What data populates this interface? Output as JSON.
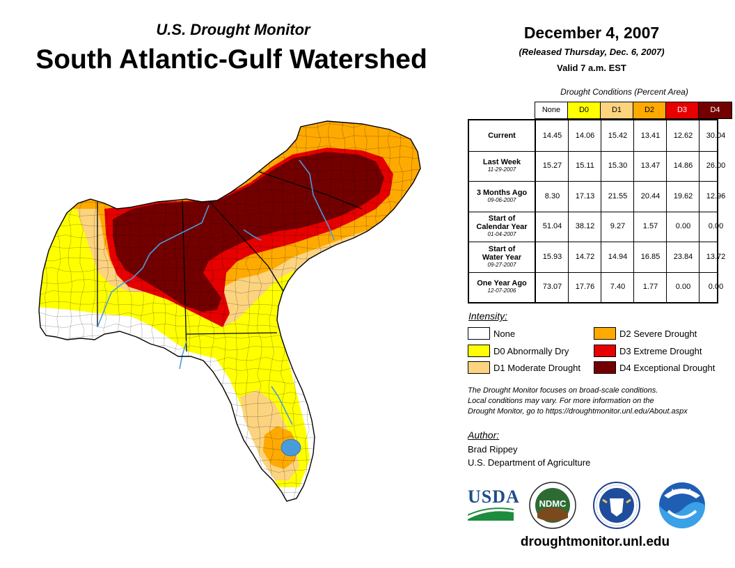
{
  "header": {
    "supertitle": "U.S. Drought Monitor",
    "title": "South Atlantic-Gulf Watershed",
    "date": "December 4, 2007",
    "released": "(Released Thursday, Dec. 6, 2007)",
    "valid": "Valid 7 a.m. EST"
  },
  "table": {
    "title": "Drought Conditions (Percent Area)",
    "columns": [
      {
        "label": "None",
        "color": "#ffffff",
        "text_color": "#000000"
      },
      {
        "label": "D0",
        "color": "#ffff00",
        "text_color": "#000000"
      },
      {
        "label": "D1",
        "color": "#fcd37f",
        "text_color": "#000000"
      },
      {
        "label": "D2",
        "color": "#ffaa00",
        "text_color": "#000000"
      },
      {
        "label": "D3",
        "color": "#e60000",
        "text_color": "#ffffff"
      },
      {
        "label": "D4",
        "color": "#730000",
        "text_color": "#ffffff"
      }
    ],
    "rows": [
      {
        "label": "Current",
        "label2": "",
        "sub": "",
        "values": [
          "14.45",
          "14.06",
          "15.42",
          "13.41",
          "12.62",
          "30.04"
        ]
      },
      {
        "label": "Last Week",
        "label2": "",
        "sub": "11-29-2007",
        "values": [
          "15.27",
          "15.11",
          "15.30",
          "13.47",
          "14.86",
          "26.00"
        ]
      },
      {
        "label": "3 Months Ago",
        "label2": "",
        "sub": "09-06-2007",
        "values": [
          "8.30",
          "17.13",
          "21.55",
          "20.44",
          "19.62",
          "12.96"
        ]
      },
      {
        "label": "Start of",
        "label2": "Calendar Year",
        "sub": "01-04-2007",
        "values": [
          "51.04",
          "38.12",
          "9.27",
          "1.57",
          "0.00",
          "0.00"
        ]
      },
      {
        "label": "Start of",
        "label2": "Water Year",
        "sub": "09-27-2007",
        "values": [
          "15.93",
          "14.72",
          "14.94",
          "16.85",
          "23.84",
          "13.72"
        ]
      },
      {
        "label": "One Year Ago",
        "label2": "",
        "sub": "12-07-2006",
        "values": [
          "73.07",
          "17.76",
          "7.40",
          "1.77",
          "0.00",
          "0.00"
        ]
      }
    ]
  },
  "legend": {
    "title": "Intensity:",
    "items": [
      {
        "label": "None",
        "color": "#ffffff"
      },
      {
        "label": "D0 Abnormally Dry",
        "color": "#ffff00"
      },
      {
        "label": "D1 Moderate Drought",
        "color": "#fcd37f"
      },
      {
        "label": "D2 Severe Drought",
        "color": "#ffaa00"
      },
      {
        "label": "D3 Extreme Drought",
        "color": "#e60000"
      },
      {
        "label": "D4 Exceptional Drought",
        "color": "#730000"
      }
    ]
  },
  "note": {
    "line1": "The Drought Monitor focuses on broad-scale conditions.",
    "line2": "Local conditions may vary. For more information on the",
    "line3": "Drought Monitor, go to https://droughtmonitor.unl.edu/About.aspx"
  },
  "author": {
    "label": "Author:",
    "name": "Brad Rippey",
    "org": "U.S. Department of Agriculture"
  },
  "logos": {
    "usda": "USDA",
    "ndmc": "NDMC",
    "noaa": "NOAA"
  },
  "footer": {
    "url": "droughtmonitor.unl.edu"
  },
  "map": {
    "colors": {
      "none": "#ffffff",
      "d0": "#ffff00",
      "d1": "#fcd37f",
      "d2": "#ffaa00",
      "d3": "#e60000",
      "d4": "#730000",
      "water": "#4a9bdc",
      "border": "#000000"
    }
  }
}
